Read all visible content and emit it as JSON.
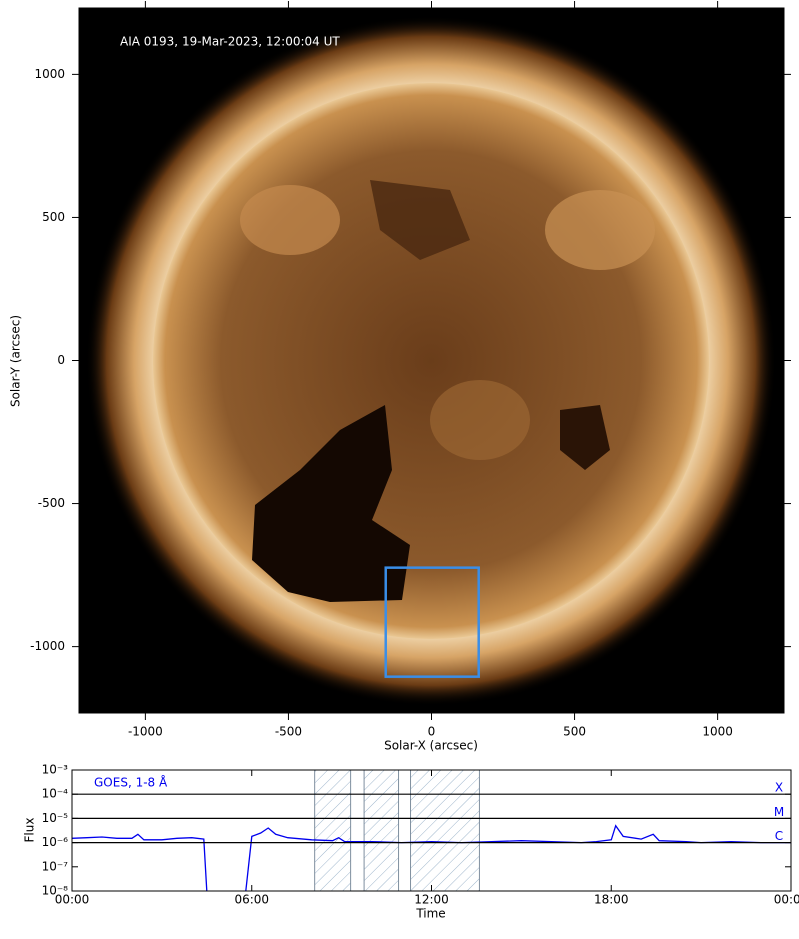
{
  "chart_data": [
    {
      "type": "image",
      "annotation": "AIA 0193, 19-Mar-2023, 12:00:04 UT",
      "x_label": "Solar-X (arcsec)",
      "y_label": "Solar-Y (arcsec)",
      "xlim": [
        -1232,
        1232
      ],
      "ylim": [
        -1232,
        1232
      ],
      "xticks": [
        -1000,
        -500,
        0,
        500,
        1000
      ],
      "yticks": [
        -1000,
        -500,
        0,
        500,
        1000
      ],
      "box": {
        "x": [
          -160,
          165
        ],
        "y": [
          -1105,
          -724
        ],
        "color": "#3a8ee8"
      }
    },
    {
      "type": "line",
      "x_label": "Time",
      "y_label": "Flux",
      "log_y": true,
      "xlim": [
        0,
        24
      ],
      "ylim": [
        1e-08,
        0.001
      ],
      "xticks": [
        {
          "value": 0,
          "label": "00:00"
        },
        {
          "value": 6,
          "label": "06:00"
        },
        {
          "value": 12,
          "label": "12:00"
        },
        {
          "value": 18,
          "label": "18:00"
        },
        {
          "value": 24,
          "label": "00:00"
        }
      ],
      "yticks": [
        {
          "value": 1e-08,
          "label": "10⁻⁸"
        },
        {
          "value": 1e-07,
          "label": "10⁻⁷"
        },
        {
          "value": 1e-06,
          "label": "10⁻⁶"
        },
        {
          "value": 1e-05,
          "label": "10⁻⁵"
        },
        {
          "value": 0.0001,
          "label": "10⁻⁴"
        },
        {
          "value": 0.001,
          "label": "10⁻³"
        }
      ],
      "levels": [
        {
          "value": 0.0001,
          "label": "X"
        },
        {
          "value": 1e-05,
          "label": "M"
        },
        {
          "value": 1e-06,
          "label": "C"
        }
      ],
      "intervals": [
        [
          8.1,
          9.3
        ],
        [
          9.75,
          10.9
        ],
        [
          11.3,
          13.6
        ]
      ],
      "x": [
        0,
        0.5,
        1,
        1.5,
        2,
        2.2,
        2.4,
        3,
        3.5,
        4,
        4.4,
        4.5,
        5,
        5.8,
        6,
        6.3,
        6.55,
        6.8,
        7.2,
        8,
        8.7,
        8.9,
        9.1,
        10,
        11,
        12,
        13,
        14,
        15,
        16,
        17,
        17.5,
        18,
        18.15,
        18.4,
        19,
        19.4,
        19.6,
        20.5,
        21,
        22,
        23,
        24
      ],
      "series": [
        {
          "name": "GOES, 1-8 Å",
          "color": "#0000ee",
          "values": [
            1.5e-06,
            1.6e-06,
            1.7e-06,
            1.5e-06,
            1.5e-06,
            2.2e-06,
            1.3e-06,
            1.3e-06,
            1.5e-06,
            1.6e-06,
            1.4e-06,
            1e-08,
            null,
            1e-08,
            1.8e-06,
            2.5e-06,
            4e-06,
            2.2e-06,
            1.6e-06,
            1.3e-06,
            1.2e-06,
            1.6e-06,
            1.1e-06,
            1.1e-06,
            1e-06,
            1.1e-06,
            1e-06,
            1.1e-06,
            1.2e-06,
            1.1e-06,
            1e-06,
            1.1e-06,
            1.3e-06,
            5e-06,
            1.8e-06,
            1.4e-06,
            2.2e-06,
            1.2e-06,
            1.1e-06,
            1e-06,
            1.1e-06,
            1e-06,
            1e-06
          ]
        }
      ]
    }
  ]
}
